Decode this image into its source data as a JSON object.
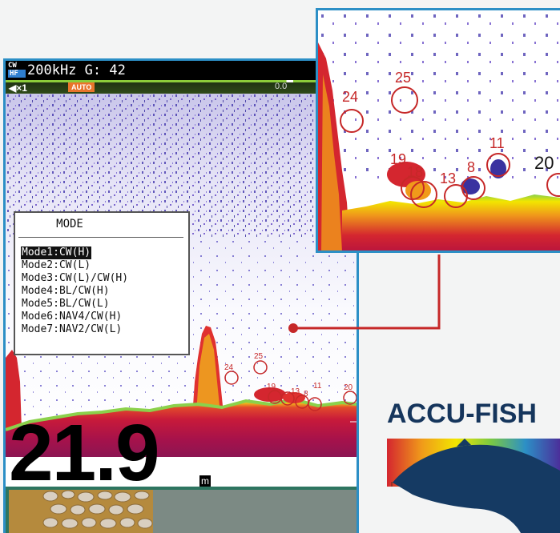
{
  "sonar": {
    "cw_label": "CW",
    "hf_label": "HF",
    "frequency_gain": "200kHz G: 42",
    "zoom_label": "×1",
    "auto_label": "AUTO",
    "top_right_label": "0.0",
    "depth_value": "21.9",
    "depth_unit": "m",
    "fish_marks": [
      "24",
      "25",
      "19",
      "18",
      "13",
      "8",
      "11",
      "20"
    ]
  },
  "mode_menu": {
    "title": "MODE",
    "items": [
      {
        "label": "Mode1:CW(H)",
        "selected": true
      },
      {
        "label": "Mode2:CW(L)"
      },
      {
        "label": "Mode3:CW(L)/CW(H)"
      },
      {
        "label": "Mode4:BL/CW(H)"
      },
      {
        "label": "Mode5:BL/CW(L)"
      },
      {
        "label": "Mode6:NAV4/CW(H)"
      },
      {
        "label": "Mode7:NAV2/CW(L)"
      }
    ]
  },
  "zoom_window": {
    "fish_marks": [
      "24",
      "25",
      "19",
      "18",
      "13",
      "8",
      "11",
      "20"
    ]
  },
  "logo": {
    "text": "ACCU-FISH"
  },
  "colors": {
    "frame_blue": "#2c8fc6",
    "connector_red": "#c62828",
    "logo_navy": "#15355c",
    "bottom_red": "#c81a3a",
    "bottom_yellow": "#f2e600"
  }
}
